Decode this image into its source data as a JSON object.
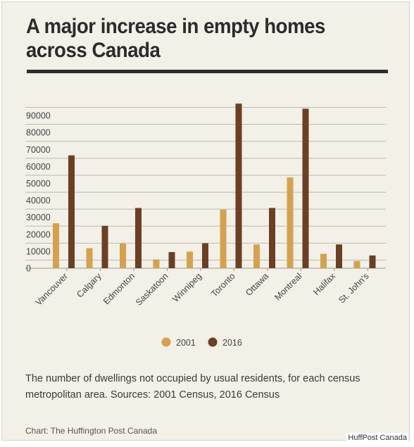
{
  "title": "A major increase in empty homes across Canada",
  "caption": "The number of dwellings not occupied by usual residents, for each census metropolitan area. Sources: 2001 Census, 2016 Census",
  "credit": "Chart: The Huffington Post Canada",
  "watermark": "HuffPost Canada",
  "colors": {
    "s2001": "#d4a24f",
    "s2016": "#6b3f24",
    "grid": "#bdb9b0",
    "background": "#f3f0e8"
  },
  "chart_data": {
    "type": "bar",
    "title": "A major increase in empty homes across Canada",
    "categories": [
      "Vancouver",
      "Calgary",
      "Edmonton",
      "Saskatoon",
      "Winnipeg",
      "Toronto",
      "Ottawa",
      "Montreal",
      "Halifax",
      "St. John's"
    ],
    "series": [
      {
        "name": "2001",
        "values": [
          26500,
          11800,
          14500,
          5200,
          9800,
          34500,
          14000,
          53500,
          8500,
          4200
        ]
      },
      {
        "name": "2016",
        "values": [
          66500,
          25000,
          35500,
          9500,
          14700,
          97000,
          35500,
          94000,
          14000,
          7500
        ]
      }
    ],
    "yticks": [
      0,
      10000,
      20000,
      30000,
      40000,
      50000,
      60000,
      70000,
      80000,
      90000
    ],
    "ylim": [
      0,
      95000
    ],
    "grid": true,
    "legend_position": "bottom-center"
  }
}
